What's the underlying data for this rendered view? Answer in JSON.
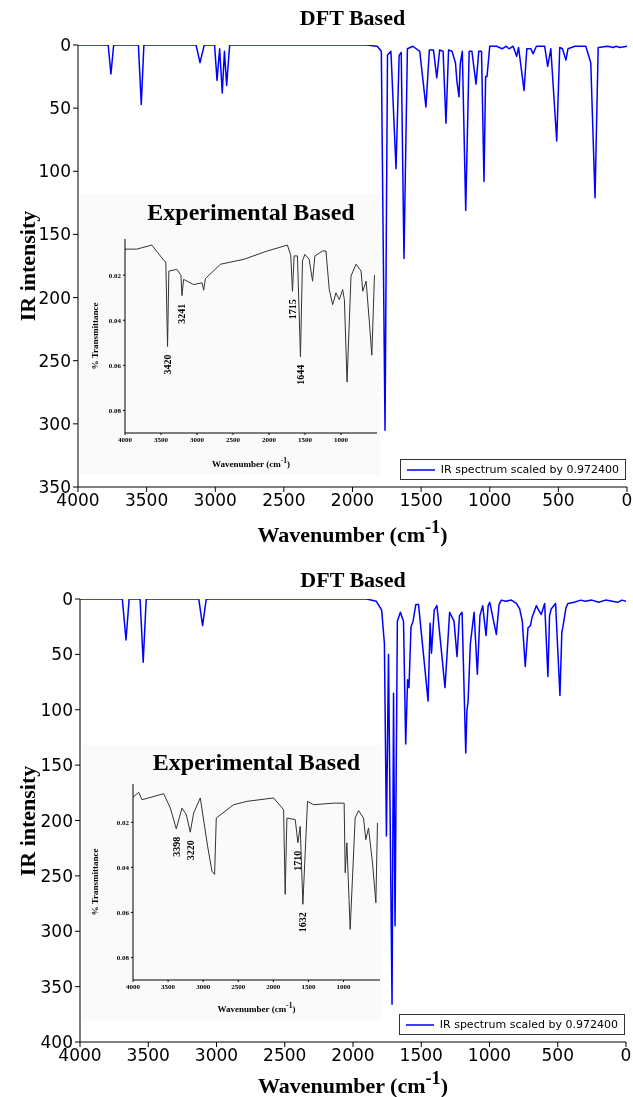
{
  "chart_data": [
    {
      "type": "line",
      "title": "DFT Based",
      "xlabel": "Wavenumber (cm$^{-1}$)",
      "ylabel": "IR intensity",
      "legend": "bottom right",
      "xlim": [
        4000,
        0
      ],
      "xticks": [
        4000,
        3500,
        3000,
        2500,
        2000,
        1500,
        1000,
        500,
        0
      ],
      "ylim": [
        350,
        0
      ],
      "yticks": [
        0,
        50,
        100,
        150,
        200,
        250,
        300,
        350
      ],
      "series": [
        {
          "name": "IR spectrum scaled by 0.972400",
          "color": "#0000ff",
          "x": [
            4000,
            3780,
            3760,
            3740,
            3560,
            3539,
            3520,
            3140,
            3111,
            3080,
            3005,
            2987,
            2968,
            2949,
            2933,
            2917,
            2895,
            1900,
            1820,
            1790,
            1763,
            1745,
            1720,
            1683,
            1660,
            1645,
            1625,
            1600,
            1560,
            1510,
            1465,
            1440,
            1410,
            1386,
            1365,
            1340,
            1319,
            1300,
            1275,
            1250,
            1239,
            1224,
            1215,
            1200,
            1175,
            1150,
            1130,
            1100,
            1080,
            1060,
            1042,
            1030,
            1020,
            1000,
            950,
            910,
            880,
            860,
            830,
            804,
            790,
            750,
            730,
            700,
            685,
            660,
            600,
            578,
            555,
            512,
            490,
            470,
            445,
            430,
            380,
            300,
            264,
            233,
            210,
            140,
            100,
            80,
            50,
            0
          ],
          "values": [
            0,
            0,
            23,
            0,
            0,
            47,
            0,
            0,
            14,
            0,
            0,
            28,
            3,
            38,
            5,
            32,
            0,
            0,
            1,
            5,
            305,
            8,
            5,
            98,
            8,
            6,
            169,
            3,
            1,
            5,
            49,
            4,
            4,
            26,
            4,
            5,
            62,
            4,
            5,
            14,
            29,
            41,
            15,
            5,
            131,
            5,
            5,
            31,
            5,
            5,
            108,
            25,
            25,
            1,
            1,
            3,
            1,
            3,
            1,
            9,
            2,
            36,
            3,
            3,
            7,
            1,
            1,
            17,
            3,
            76,
            2,
            3,
            12,
            3,
            1,
            1,
            14,
            121,
            2,
            1,
            2,
            1,
            2,
            1
          ]
        }
      ]
    },
    {
      "type": "line",
      "title": "Experimental Based",
      "xlabel": "Wavenumber (cm$^{-1}$)",
      "ylabel": "% Transmittance",
      "xlim": [
        4000,
        500
      ],
      "xticks": [
        4000,
        3500,
        3000,
        2500,
        2000,
        1500,
        1000
      ],
      "ylim": [
        0.09,
        0.004
      ],
      "yticks": [
        0.02,
        0.04,
        0.06,
        0.08
      ],
      "series": [
        {
          "color": "#333333",
          "x": [
            4000,
            3837,
            3628,
            3465,
            3433,
            3409,
            3391,
            3279,
            3223,
            3209,
            3186,
            3047,
            2930,
            2907,
            2884,
            2674,
            2349,
            2023,
            1744,
            1698,
            1674,
            1651,
            1605,
            1563,
            1535,
            1502,
            1442,
            1395,
            1363,
            1256,
            1209,
            1163,
            1116,
            1070,
            1023,
            977,
            953,
            916,
            861,
            791,
            721,
            698,
            651,
            605,
            572,
            535
          ],
          "values": [
            0.0085,
            0.0085,
            0.0067,
            0.0133,
            0.0142,
            0.0517,
            0.0182,
            0.0175,
            0.0201,
            0.0291,
            0.0219,
            0.0242,
            0.0234,
            0.0267,
            0.0216,
            0.0152,
            0.013,
            0.0093,
            0.0067,
            0.0112,
            0.0272,
            0.0115,
            0.0115,
            0.0562,
            0.0137,
            0.0108,
            0.013,
            0.0227,
            0.0115,
            0.0093,
            0.0093,
            0.0264,
            0.0331,
            0.0279,
            0.0309,
            0.0264,
            0.0309,
            0.0674,
            0.0204,
            0.0152,
            0.0182,
            0.0272,
            0.0227,
            0.0413,
            0.0555,
            0.02
          ]
        }
      ],
      "annotations": [
        {
          "text": "3420",
          "x": 3409,
          "y": 0.0517
        },
        {
          "text": "3241",
          "x": 3209,
          "y": 0.0291
        },
        {
          "text": "1715",
          "x": 1674,
          "y": 0.0272
        },
        {
          "text": "1644",
          "x": 1563,
          "y": 0.0562
        }
      ]
    },
    {
      "type": "line",
      "title": "DFT Based",
      "xlabel": "Wavenumber (cm$^{-1}$)",
      "ylabel": "IR intensity",
      "legend": "bottom right",
      "xlim": [
        4000,
        0
      ],
      "xticks": [
        4000,
        3500,
        3000,
        2500,
        2000,
        1500,
        1000,
        500,
        0
      ],
      "ylim": [
        400,
        0
      ],
      "yticks": [
        0,
        50,
        100,
        150,
        200,
        250,
        300,
        350,
        400
      ],
      "series": [
        {
          "name": "IR spectrum scaled by 0.972400",
          "color": "#0000ff",
          "x": [
            4000,
            3690,
            3663,
            3640,
            3560,
            3537,
            3515,
            3130,
            3102,
            3075,
            1900,
            1830,
            1790,
            1770,
            1755,
            1740,
            1714,
            1703,
            1692,
            1675,
            1653,
            1630,
            1614,
            1600,
            1590,
            1575,
            1560,
            1540,
            1520,
            1450,
            1435,
            1425,
            1405,
            1385,
            1326,
            1292,
            1260,
            1238,
            1220,
            1201,
            1174,
            1165,
            1157,
            1140,
            1113,
            1089,
            1070,
            1050,
            1025,
            1010,
            998,
            950,
            930,
            913,
            880,
            840,
            803,
            779,
            760,
            738,
            718,
            700,
            689,
            657,
            640,
            621,
            596,
            572,
            560,
            548,
            516,
            484,
            470,
            462,
            440,
            425,
            380,
            330,
            300,
            250,
            200,
            150,
            100,
            60,
            30,
            0
          ],
          "values": [
            0,
            0,
            37,
            0,
            0,
            57,
            0,
            0,
            24,
            0,
            0,
            2,
            10,
            40,
            214,
            50,
            366,
            85,
            295,
            20,
            12,
            20,
            131,
            73,
            80,
            25,
            20,
            5,
            5,
            92,
            22,
            49,
            10,
            6,
            80,
            12,
            20,
            52,
            15,
            12,
            139,
            100,
            93,
            40,
            12,
            68,
            15,
            6,
            33,
            6,
            3,
            32,
            5,
            1,
            2,
            1,
            4,
            9,
            20,
            61,
            26,
            24,
            17,
            6,
            10,
            14,
            4,
            70,
            15,
            9,
            4,
            87,
            30,
            25,
            8,
            4,
            3,
            1,
            2,
            1,
            3,
            1,
            2,
            3,
            1,
            2
          ]
        }
      ]
    },
    {
      "type": "line",
      "title": "Experimental Based",
      "xlabel": "Wavenumber (cm$^{-1}$)",
      "ylabel": "% Transmittance",
      "xlim": [
        4000,
        480
      ],
      "xticks": [
        4000,
        3500,
        3000,
        2500,
        2000,
        1500,
        1000
      ],
      "ylim": [
        0.09,
        0.003
      ],
      "yticks": [
        0.02,
        0.04,
        0.06,
        0.08
      ],
      "series": [
        {
          "color": "#333333",
          "x": [
            4000,
            3919,
            3872,
            3563,
            3468,
            3383,
            3302,
            3240,
            3184,
            3136,
            3041,
            2937,
            2875,
            2837,
            2813,
            2566,
            2377,
            1997,
            1854,
            1831,
            1807,
            1688,
            1650,
            1617,
            1579,
            1513,
            1427,
            1142,
            991,
            976,
            952,
            905,
            834,
            786,
            715,
            682,
            644,
            587,
            539,
            516
          ],
          "values": [
            0.0088,
            0.0067,
            0.01,
            0.0073,
            0.0137,
            0.0229,
            0.0137,
            0.0166,
            0.0244,
            0.0159,
            0.0092,
            0.0306,
            0.0417,
            0.0431,
            0.0181,
            0.0122,
            0.0107,
            0.0092,
            0.0144,
            0.052,
            0.0181,
            0.0188,
            0.0291,
            0.0218,
            0.0564,
            0.0107,
            0.0122,
            0.0115,
            0.0115,
            0.0424,
            0.0291,
            0.0675,
            0.0181,
            0.0148,
            0.0181,
            0.0277,
            0.0225,
            0.038,
            0.0557,
            0.0203
          ]
        }
      ],
      "annotations": [
        {
          "text": "3398",
          "x": 3383,
          "y": 0.0229
        },
        {
          "text": "3220",
          "x": 3184,
          "y": 0.0244
        },
        {
          "text": "1710",
          "x": 1650,
          "y": 0.0291
        },
        {
          "text": "1632",
          "x": 1579,
          "y": 0.0564
        }
      ]
    }
  ]
}
